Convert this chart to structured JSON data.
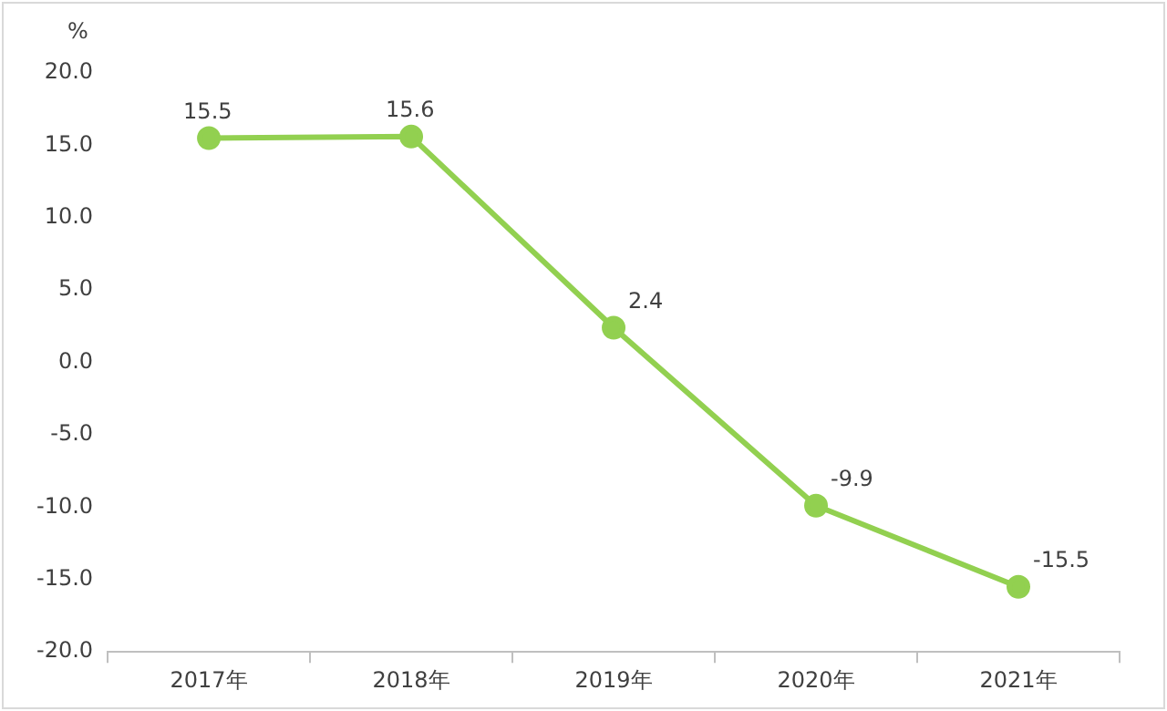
{
  "chart_data": {
    "type": "line",
    "ylabel": "%",
    "categories": [
      "2017年",
      "2018年",
      "2019年",
      "2020年",
      "2021年"
    ],
    "series": [
      {
        "color": "#92d050",
        "values": [
          15.5,
          15.6,
          2.4,
          -9.9,
          -15.5
        ]
      }
    ],
    "ylim": [
      -20,
      20
    ],
    "yticks": [
      {
        "value": -20,
        "label": "-20.0"
      },
      {
        "value": -15,
        "label": "-15.0"
      },
      {
        "value": -10,
        "label": "-10.0"
      },
      {
        "value": -5,
        "label": "-5.0"
      },
      {
        "value": 0,
        "label": "0.0"
      },
      {
        "value": 5,
        "label": "5.0"
      },
      {
        "value": 10,
        "label": "10.0"
      },
      {
        "value": 15,
        "label": "15.0"
      },
      {
        "value": 20,
        "label": "20.0"
      }
    ],
    "grid": false,
    "legend": false,
    "marker": "circle",
    "line_style": "solid",
    "data_labels": true
  }
}
